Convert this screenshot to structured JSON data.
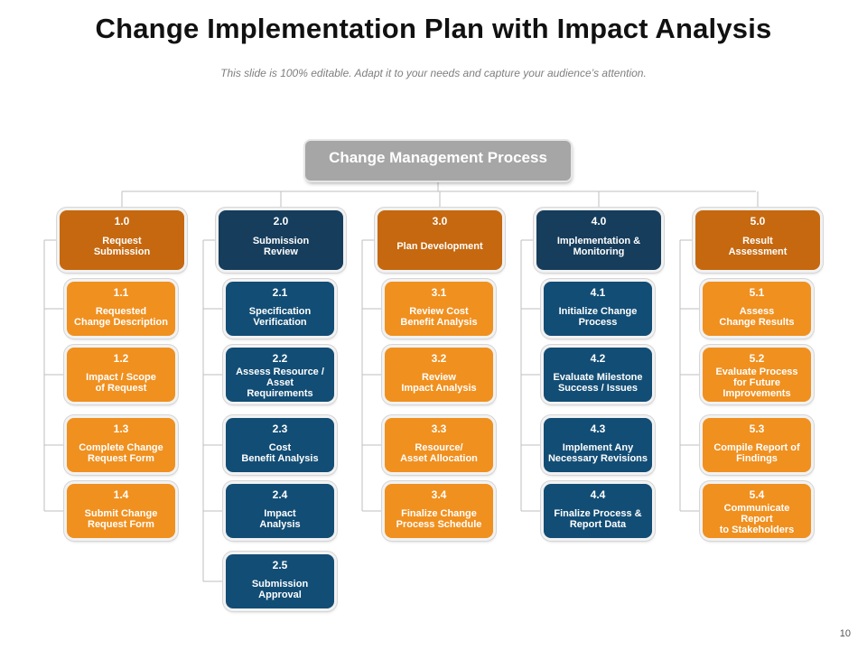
{
  "title": "Change Implementation Plan with Impact Analysis",
  "subtitle": "This slide is 100% editable. Adapt it to your needs and capture your audience’s attention.",
  "page_number": "10",
  "colors": {
    "orange_dark": "#c5680f",
    "navy": "#163d5c",
    "orange": "#f0901f",
    "blue": "#124d75",
    "gray": "#a6a6a6"
  },
  "root": {
    "label": "Change Management Process"
  },
  "columns": [
    {
      "num": "1.0",
      "label": "Request\nSubmission",
      "items": [
        {
          "num": "1.1",
          "label": "Requested\nChange Description"
        },
        {
          "num": "1.2",
          "label": "Impact / Scope\nof Request"
        },
        {
          "num": "1.3",
          "label": "Complete Change\nRequest Form"
        },
        {
          "num": "1.4",
          "label": "Submit Change\nRequest Form"
        }
      ]
    },
    {
      "num": "2.0",
      "label": "Submission\nReview",
      "items": [
        {
          "num": "2.1",
          "label": "Specification\nVerification"
        },
        {
          "num": "2.2",
          "label": "Assess Resource /\nAsset\nRequirements"
        },
        {
          "num": "2.3",
          "label": "Cost\nBenefit Analysis"
        },
        {
          "num": "2.4",
          "label": "Impact\nAnalysis"
        },
        {
          "num": "2.5",
          "label": "Submission\nApproval"
        }
      ]
    },
    {
      "num": "3.0",
      "label": "Plan Development",
      "items": [
        {
          "num": "3.1",
          "label": "Review Cost\nBenefit Analysis"
        },
        {
          "num": "3.2",
          "label": "Review\nImpact Analysis"
        },
        {
          "num": "3.3",
          "label": "Resource/\nAsset Allocation"
        },
        {
          "num": "3.4",
          "label": "Finalize Change\nProcess Schedule"
        }
      ]
    },
    {
      "num": "4.0",
      "label": "Implementation &\nMonitoring",
      "items": [
        {
          "num": "4.1",
          "label": "Initialize Change\nProcess"
        },
        {
          "num": "4.2",
          "label": "Evaluate Milestone\nSuccess / Issues"
        },
        {
          "num": "4.3",
          "label": "Implement Any\nNecessary Revisions"
        },
        {
          "num": "4.4",
          "label": "Finalize Process &\nReport Data"
        }
      ]
    },
    {
      "num": "5.0",
      "label": "Result\nAssessment",
      "items": [
        {
          "num": "5.1",
          "label": "Assess\nChange Results"
        },
        {
          "num": "5.2",
          "label": "Evaluate Process\nfor Future\nImprovements"
        },
        {
          "num": "5.3",
          "label": "Compile Report of\nFindings"
        },
        {
          "num": "5.4",
          "label": "Communicate\nReport\nto Stakeholders"
        }
      ]
    }
  ]
}
